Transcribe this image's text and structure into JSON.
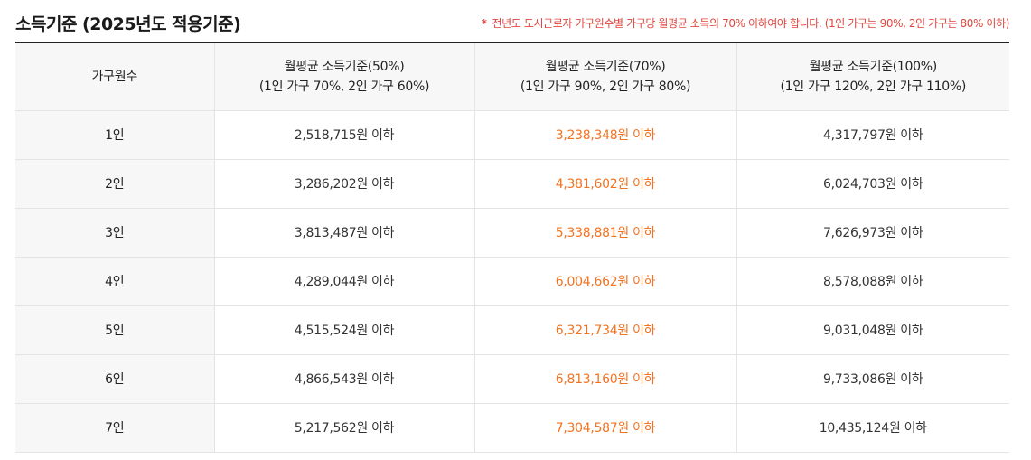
{
  "title": "소득기준 (2025년도 적용기준)",
  "note": {
    "star": "*",
    "text": "전년도 도시근로자 가구원수별 가구당 월평균 소득의 70% 이하여야 합니다. (1인 가구는 90%, 2인 가구는 80% 이하)"
  },
  "colors": {
    "note": "#e0463f",
    "highlight": "#f37321",
    "header_bg": "#f7f7f8",
    "border": "#e4e4e4"
  },
  "table": {
    "headers": [
      {
        "line1": "가구원수",
        "line2": ""
      },
      {
        "line1": "월평균 소득기준(50%)",
        "line2": "(1인 가구 70%, 2인 가구 60%)"
      },
      {
        "line1": "월평균 소득기준(70%)",
        "line2": "(1인 가구 90%, 2인 가구 80%)"
      },
      {
        "line1": "월평균 소득기준(100%)",
        "line2": "(1인 가구 120%, 2인 가구 110%)"
      }
    ],
    "rows": [
      {
        "household": "1인",
        "p50": "2,518,715원 이하",
        "p70": "3,238,348원 이하",
        "p100": "4,317,797원 이하"
      },
      {
        "household": "2인",
        "p50": "3,286,202원 이하",
        "p70": "4,381,602원 이하",
        "p100": "6,024,703원 이하"
      },
      {
        "household": "3인",
        "p50": "3,813,487원 이하",
        "p70": "5,338,881원 이하",
        "p100": "7,626,973원 이하"
      },
      {
        "household": "4인",
        "p50": "4,289,044원 이하",
        "p70": "6,004,662원 이하",
        "p100": "8,578,088원 이하"
      },
      {
        "household": "5인",
        "p50": "4,515,524원 이하",
        "p70": "6,321,734원 이하",
        "p100": "9,031,048원 이하"
      },
      {
        "household": "6인",
        "p50": "4,866,543원 이하",
        "p70": "6,813,160원 이하",
        "p100": "9,733,086원 이하"
      },
      {
        "household": "7인",
        "p50": "5,217,562원 이하",
        "p70": "7,304,587원 이하",
        "p100": "10,435,124원 이하"
      }
    ]
  }
}
